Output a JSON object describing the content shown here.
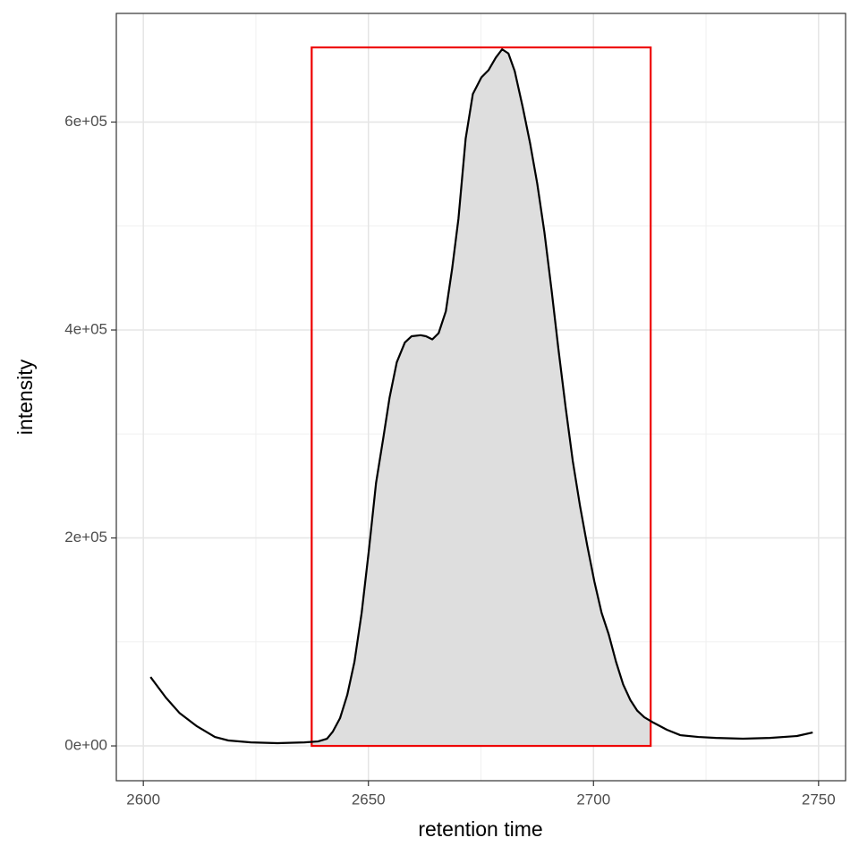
{
  "chart_data": {
    "type": "area-line",
    "x_label": "retention time",
    "y_label": "intensity",
    "x": [
      2601.6,
      2605.0,
      2608.0,
      2611.9,
      2615.9,
      2618.9,
      2623.9,
      2629.8,
      2635.8,
      2638.8,
      2640.8,
      2642.1,
      2643.7,
      2645.3,
      2646.9,
      2648.5,
      2650.1,
      2651.7,
      2653.3,
      2654.7,
      2656.3,
      2658.1,
      2659.6,
      2661.6,
      2662.8,
      2664.2,
      2665.6,
      2667.2,
      2668.6,
      2670.0,
      2671.6,
      2673.2,
      2675.1,
      2676.7,
      2678.3,
      2679.7,
      2681.1,
      2682.5,
      2684.3,
      2685.9,
      2687.5,
      2689.1,
      2690.7,
      2692.2,
      2693.8,
      2695.4,
      2697.0,
      2698.6,
      2700.2,
      2701.8,
      2703.4,
      2705.0,
      2706.6,
      2708.2,
      2709.7,
      2711.3,
      2713.3,
      2716.3,
      2719.3,
      2723.3,
      2727.2,
      2733.2,
      2739.2,
      2745.2,
      2748.7
    ],
    "values": [
      66200,
      46500,
      31800,
      18900,
      8600,
      5200,
      3400,
      2600,
      3400,
      4300,
      6900,
      13800,
      26700,
      49000,
      80900,
      128000,
      188000,
      253000,
      296000,
      335000,
      369000,
      388000,
      394000,
      395000,
      394000,
      391000,
      397000,
      418000,
      459000,
      507000,
      584000,
      627000,
      643000,
      650000,
      662000,
      670000,
      666000,
      649000,
      614000,
      580000,
      541000,
      494000,
      438000,
      382000,
      326000,
      274000,
      231000,
      193000,
      158000,
      128000,
      107000,
      81000,
      59000,
      44000,
      34000,
      27500,
      22400,
      15500,
      10300,
      8600,
      7700,
      6900,
      7700,
      9500,
      12900
    ],
    "color": "#000000",
    "fill": "#dedede",
    "rect": {
      "xmin": 2637.4,
      "xmax": 2712.7,
      "ymin": 0,
      "ymax": 671800,
      "color": "#ee0000"
    },
    "xlim": [
      2594,
      2756
    ],
    "ylim": [
      -33500,
      704500
    ],
    "xticks": [
      2600,
      2650,
      2700,
      2750
    ],
    "yticks": [
      {
        "value": 0,
        "label": "0e+00"
      },
      {
        "value": 200000,
        "label": "2e+05"
      },
      {
        "value": 400000,
        "label": "4e+05"
      },
      {
        "value": 600000,
        "label": "6e+05"
      }
    ],
    "grid": true
  }
}
